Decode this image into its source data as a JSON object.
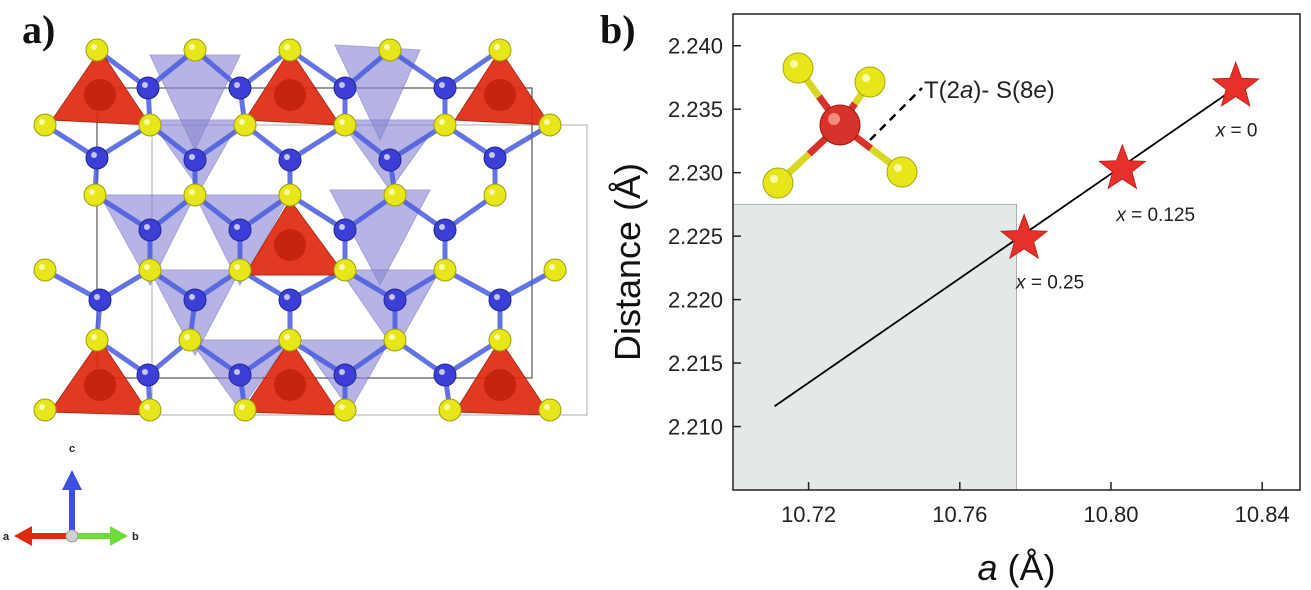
{
  "panels": {
    "a_label": "a)",
    "b_label": "b)"
  },
  "structure": {
    "axes_indicator": {
      "a": "a",
      "b": "b",
      "c": "c"
    },
    "colors": {
      "sulfur": "#e6e619",
      "blue_atom": "#3b3fd6",
      "red_tetra": "#e02a10",
      "purple_tetra": "#8b87d4",
      "bond_blue": "#4a5be0"
    }
  },
  "chart_data": {
    "type": "scatter",
    "xlabel_italic": "a",
    "xlabel_rest": " (Å)",
    "ylabel": "Distance (Å)",
    "xlim": [
      10.7,
      10.85
    ],
    "ylim": [
      2.205,
      2.2425
    ],
    "x_ticks": [
      "10.72",
      "10.76",
      "10.80",
      "10.84"
    ],
    "x_tick_values": [
      10.72,
      10.76,
      10.8,
      10.84
    ],
    "y_ticks": [
      "2.210",
      "2.215",
      "2.220",
      "2.225",
      "2.230",
      "2.235",
      "2.240"
    ],
    "y_tick_values": [
      2.21,
      2.215,
      2.22,
      2.225,
      2.23,
      2.235,
      2.24
    ],
    "points": [
      {
        "x": 10.777,
        "y": 2.2248,
        "label_var": "x",
        "label_val": " = 0.25"
      },
      {
        "x": 10.803,
        "y": 2.2303,
        "label_var": "x",
        "label_val": " = 0.125"
      },
      {
        "x": 10.833,
        "y": 2.2368,
        "label_var": "x",
        "label_val": " = 0"
      }
    ],
    "fit_line": {
      "x": [
        10.711,
        10.834
      ],
      "y": [
        2.2116,
        2.2369
      ]
    },
    "shaded_region": {
      "x": [
        10.7,
        10.775
      ],
      "y": [
        2.205,
        2.2275
      ]
    },
    "inset_label": {
      "pre": "T(2",
      "a": "a",
      "mid": ")- S(8",
      "e": "e",
      "post": ")"
    },
    "colors": {
      "star": "#e8302a",
      "line": "#000000",
      "shade": "#e4e8e8"
    },
    "grid": false
  }
}
